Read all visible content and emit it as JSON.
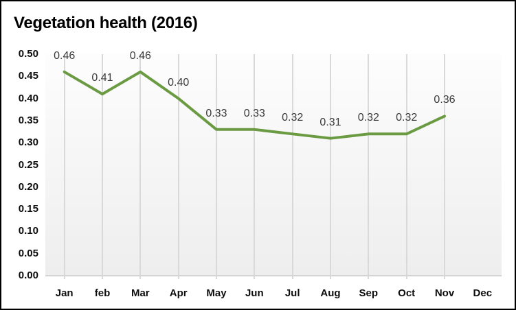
{
  "chart_data": {
    "type": "line",
    "title": "Vegetation health (2016)",
    "categories": [
      "Jan",
      "feb",
      "Mar",
      "Apr",
      "May",
      "Jun",
      "Jul",
      "Aug",
      "Sep",
      "Oct",
      "Nov",
      "Dec"
    ],
    "series": [
      {
        "values": [
          0.46,
          0.41,
          0.46,
          0.4,
          0.33,
          0.33,
          0.32,
          0.31,
          0.32,
          0.32,
          0.36,
          null
        ],
        "data_labels": [
          "0.46",
          "0.41",
          "0.46",
          "0.40",
          "0.33",
          "0.33",
          "0.32",
          "0.31",
          "0.32",
          "0.32",
          "0.36",
          null
        ],
        "color": "#6a9a42"
      }
    ],
    "xlabel": "",
    "ylabel": "",
    "ylim": [
      0.0,
      0.5
    ],
    "y_tick_labels": [
      "0.50",
      "0.45",
      "0.40",
      "0.35",
      "0.30",
      "0.25",
      "0.20",
      "0.15",
      "0.10",
      "0.05",
      "0.00"
    ],
    "grid": {
      "vertical": true,
      "horizontal": false,
      "color": "#d9d9d9"
    },
    "legend": "none",
    "colors": {
      "line": "#6a9a42",
      "gridline": "#d9d9d9",
      "axis_line": "#d4d4d4",
      "plot_bg_top": "#fdfdfd",
      "plot_bg_bottom": "#eeeeee",
      "title_text": "#000000",
      "axis_text": "#0d0d0d",
      "data_label_text": "#3a3a3a",
      "chart_border": "#000000"
    }
  }
}
